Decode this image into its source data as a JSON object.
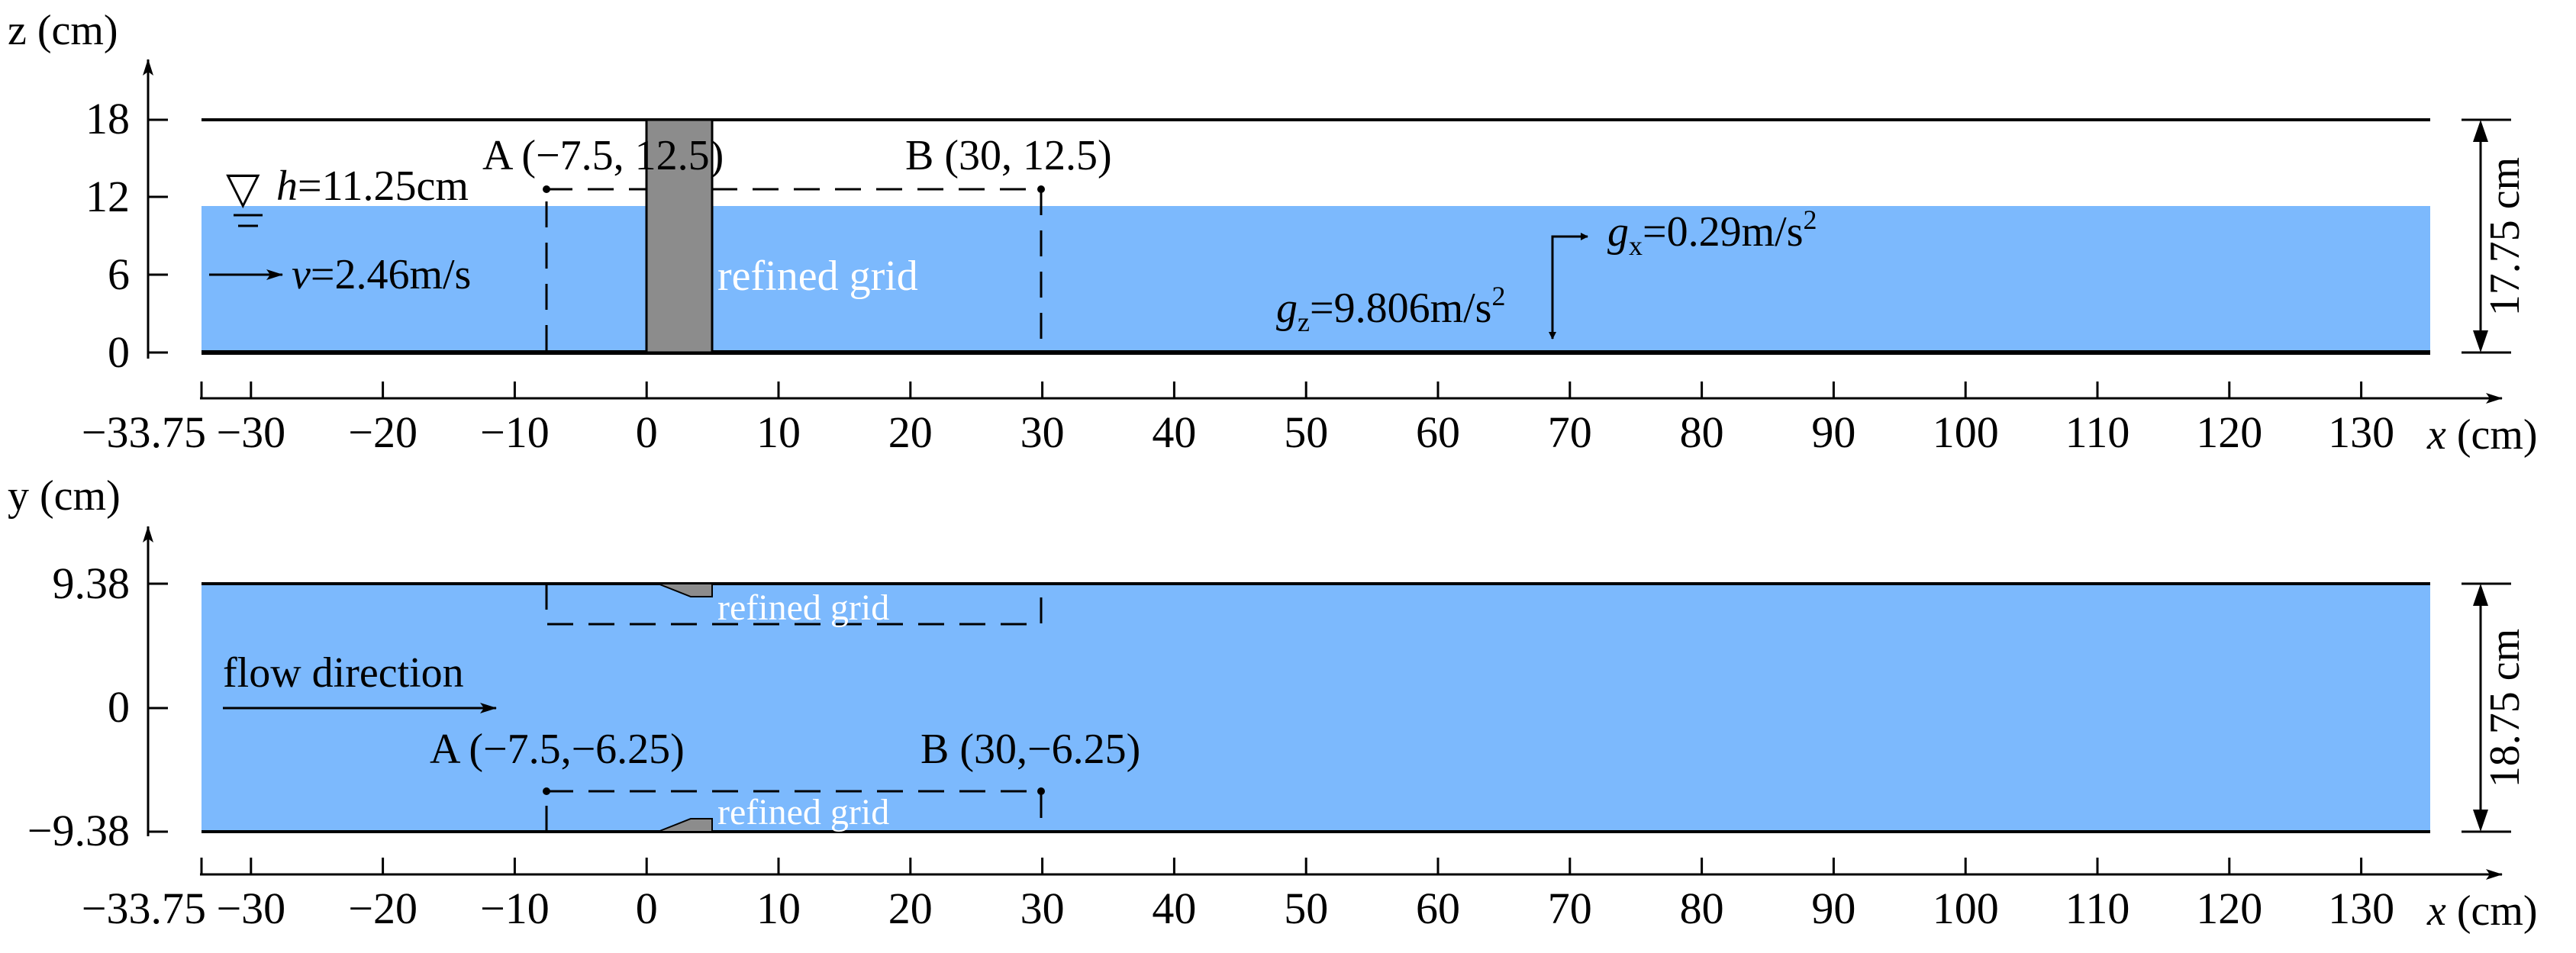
{
  "colors": {
    "water": "#7cb9fd",
    "pier": "#8c8c8c",
    "line": "#000000",
    "white_text": "#ffffff"
  },
  "side_view": {
    "axis_label": "z (cm)",
    "x_axis_label": "x (cm)",
    "z_ticks": [
      "18",
      "12",
      "6",
      "0"
    ],
    "x_ticks": [
      "−33.75",
      "−30",
      "−20",
      "−10",
      "0",
      "10",
      "20",
      "30",
      "40",
      "50",
      "60",
      "70",
      "80",
      "90",
      "100",
      "110",
      "120",
      "130"
    ],
    "point_a": "A (−7.5, 12.5)",
    "point_b": "B (30, 12.5)",
    "water_symbol": "▽",
    "depth_var": "h",
    "depth_value": "=11.25cm",
    "velocity_var": "v",
    "velocity_value": "=2.46m/s",
    "refined_grid": "refined grid",
    "gx_var": "g",
    "gx_sub": "x",
    "gx_value": "=0.29m/s",
    "gx_sup": "2",
    "gz_var": "g",
    "gz_sub": "z",
    "gz_value": "=9.806m/s",
    "gz_sup": "2",
    "height_dim": "17.75 cm"
  },
  "plan_view": {
    "axis_label": "y (cm)",
    "x_axis_label": "x (cm)",
    "y_ticks": [
      "9.38",
      "0",
      "−9.38"
    ],
    "x_ticks": [
      "−33.75",
      "−30",
      "−20",
      "−10",
      "0",
      "10",
      "20",
      "30",
      "40",
      "50",
      "60",
      "70",
      "80",
      "90",
      "100",
      "110",
      "120",
      "130"
    ],
    "flow_label": "flow direction",
    "point_a": "A (−7.5,−6.25)",
    "point_b": "B (30,−6.25)",
    "refined_grid_top": "refined grid",
    "refined_grid_bottom": "refined grid",
    "width_dim": "18.75 cm"
  }
}
